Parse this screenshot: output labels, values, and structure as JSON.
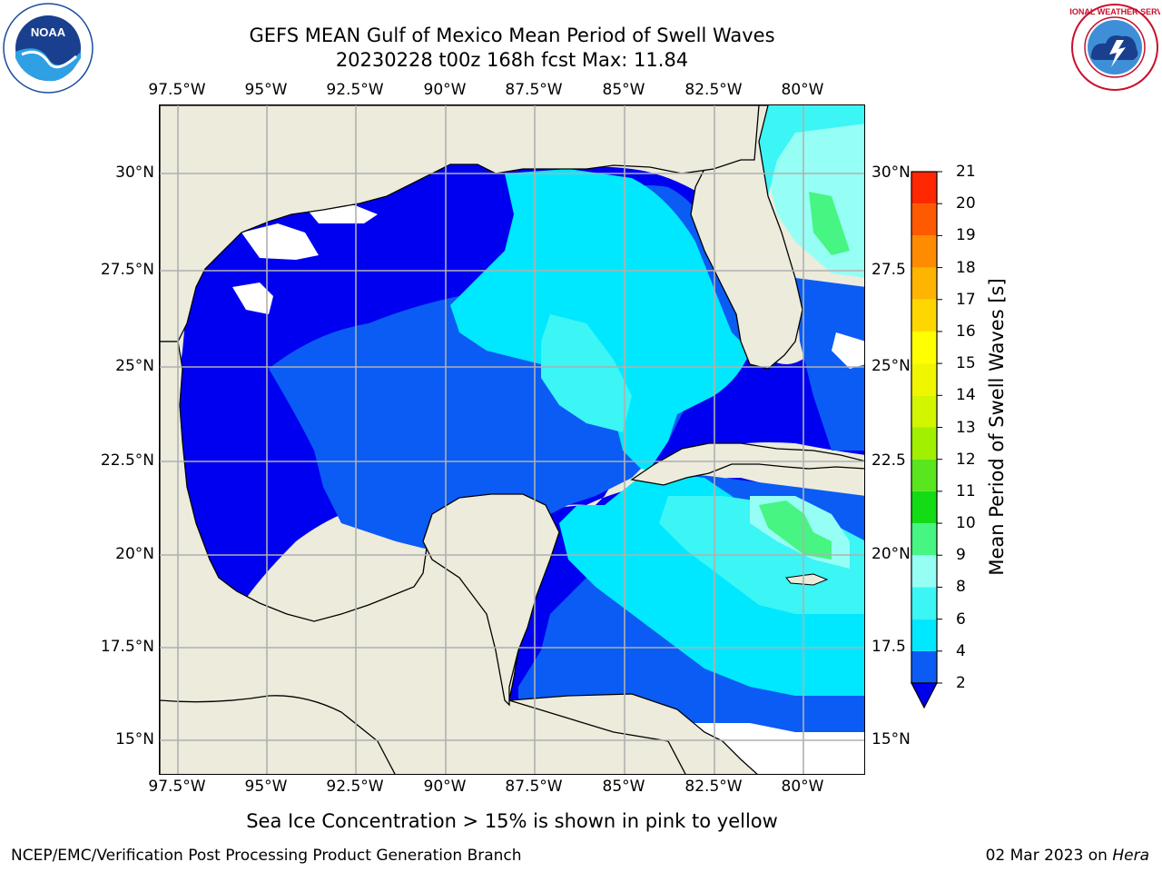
{
  "title": {
    "line1": "GEFS MEAN Gulf of Mexico Mean Period of Swell Waves",
    "line2": "20230228 t00z 168h fcst   Max: 11.84"
  },
  "map": {
    "lon_labels": [
      "97.5°W",
      "95°W",
      "92.5°W",
      "90°W",
      "87.5°W",
      "85°W",
      "82.5°W",
      "80°W"
    ],
    "lat_labels": [
      "30°N",
      "27.5°N",
      "25°N",
      "22.5°N",
      "20°N",
      "17.5°N",
      "15°N"
    ],
    "lat_labels_right": [
      "30°N",
      "27.5",
      "25°N",
      "22.5",
      "20°N",
      "17.5",
      "15°N"
    ],
    "extent": {
      "west": -98,
      "east": -78.5,
      "south": 14,
      "north": 31.5
    }
  },
  "colorbar": {
    "label": "Mean Period of Swell Waves [s]",
    "ticks": [
      "2",
      "4",
      "6",
      "8",
      "9",
      "10",
      "11",
      "12",
      "13",
      "14",
      "15",
      "16",
      "17",
      "18",
      "19",
      "20",
      "21"
    ],
    "colors": [
      "#0a5cf5",
      "#00e8ff",
      "#3cf5f5",
      "#96fff5",
      "#46f582",
      "#14dc14",
      "#5ae61e",
      "#a0f000",
      "#d2f500",
      "#f0f500",
      "#ffff00",
      "#ffd700",
      "#ffb400",
      "#ff8c00",
      "#ff5a00",
      "#ff2800"
    ],
    "extend_color": "#0000f0"
  },
  "footnote": "Sea Ice Concentration > 15% is shown in pink to yellow",
  "credits": {
    "left": "NCEP/EMC/Verification Post Processing Product Generation Branch",
    "right_date": "02 Mar 2023 on",
    "right_machine": "Hera"
  },
  "logos": {
    "left": "NOAA",
    "right": "NATIONAL WEATHER SERVICE"
  }
}
